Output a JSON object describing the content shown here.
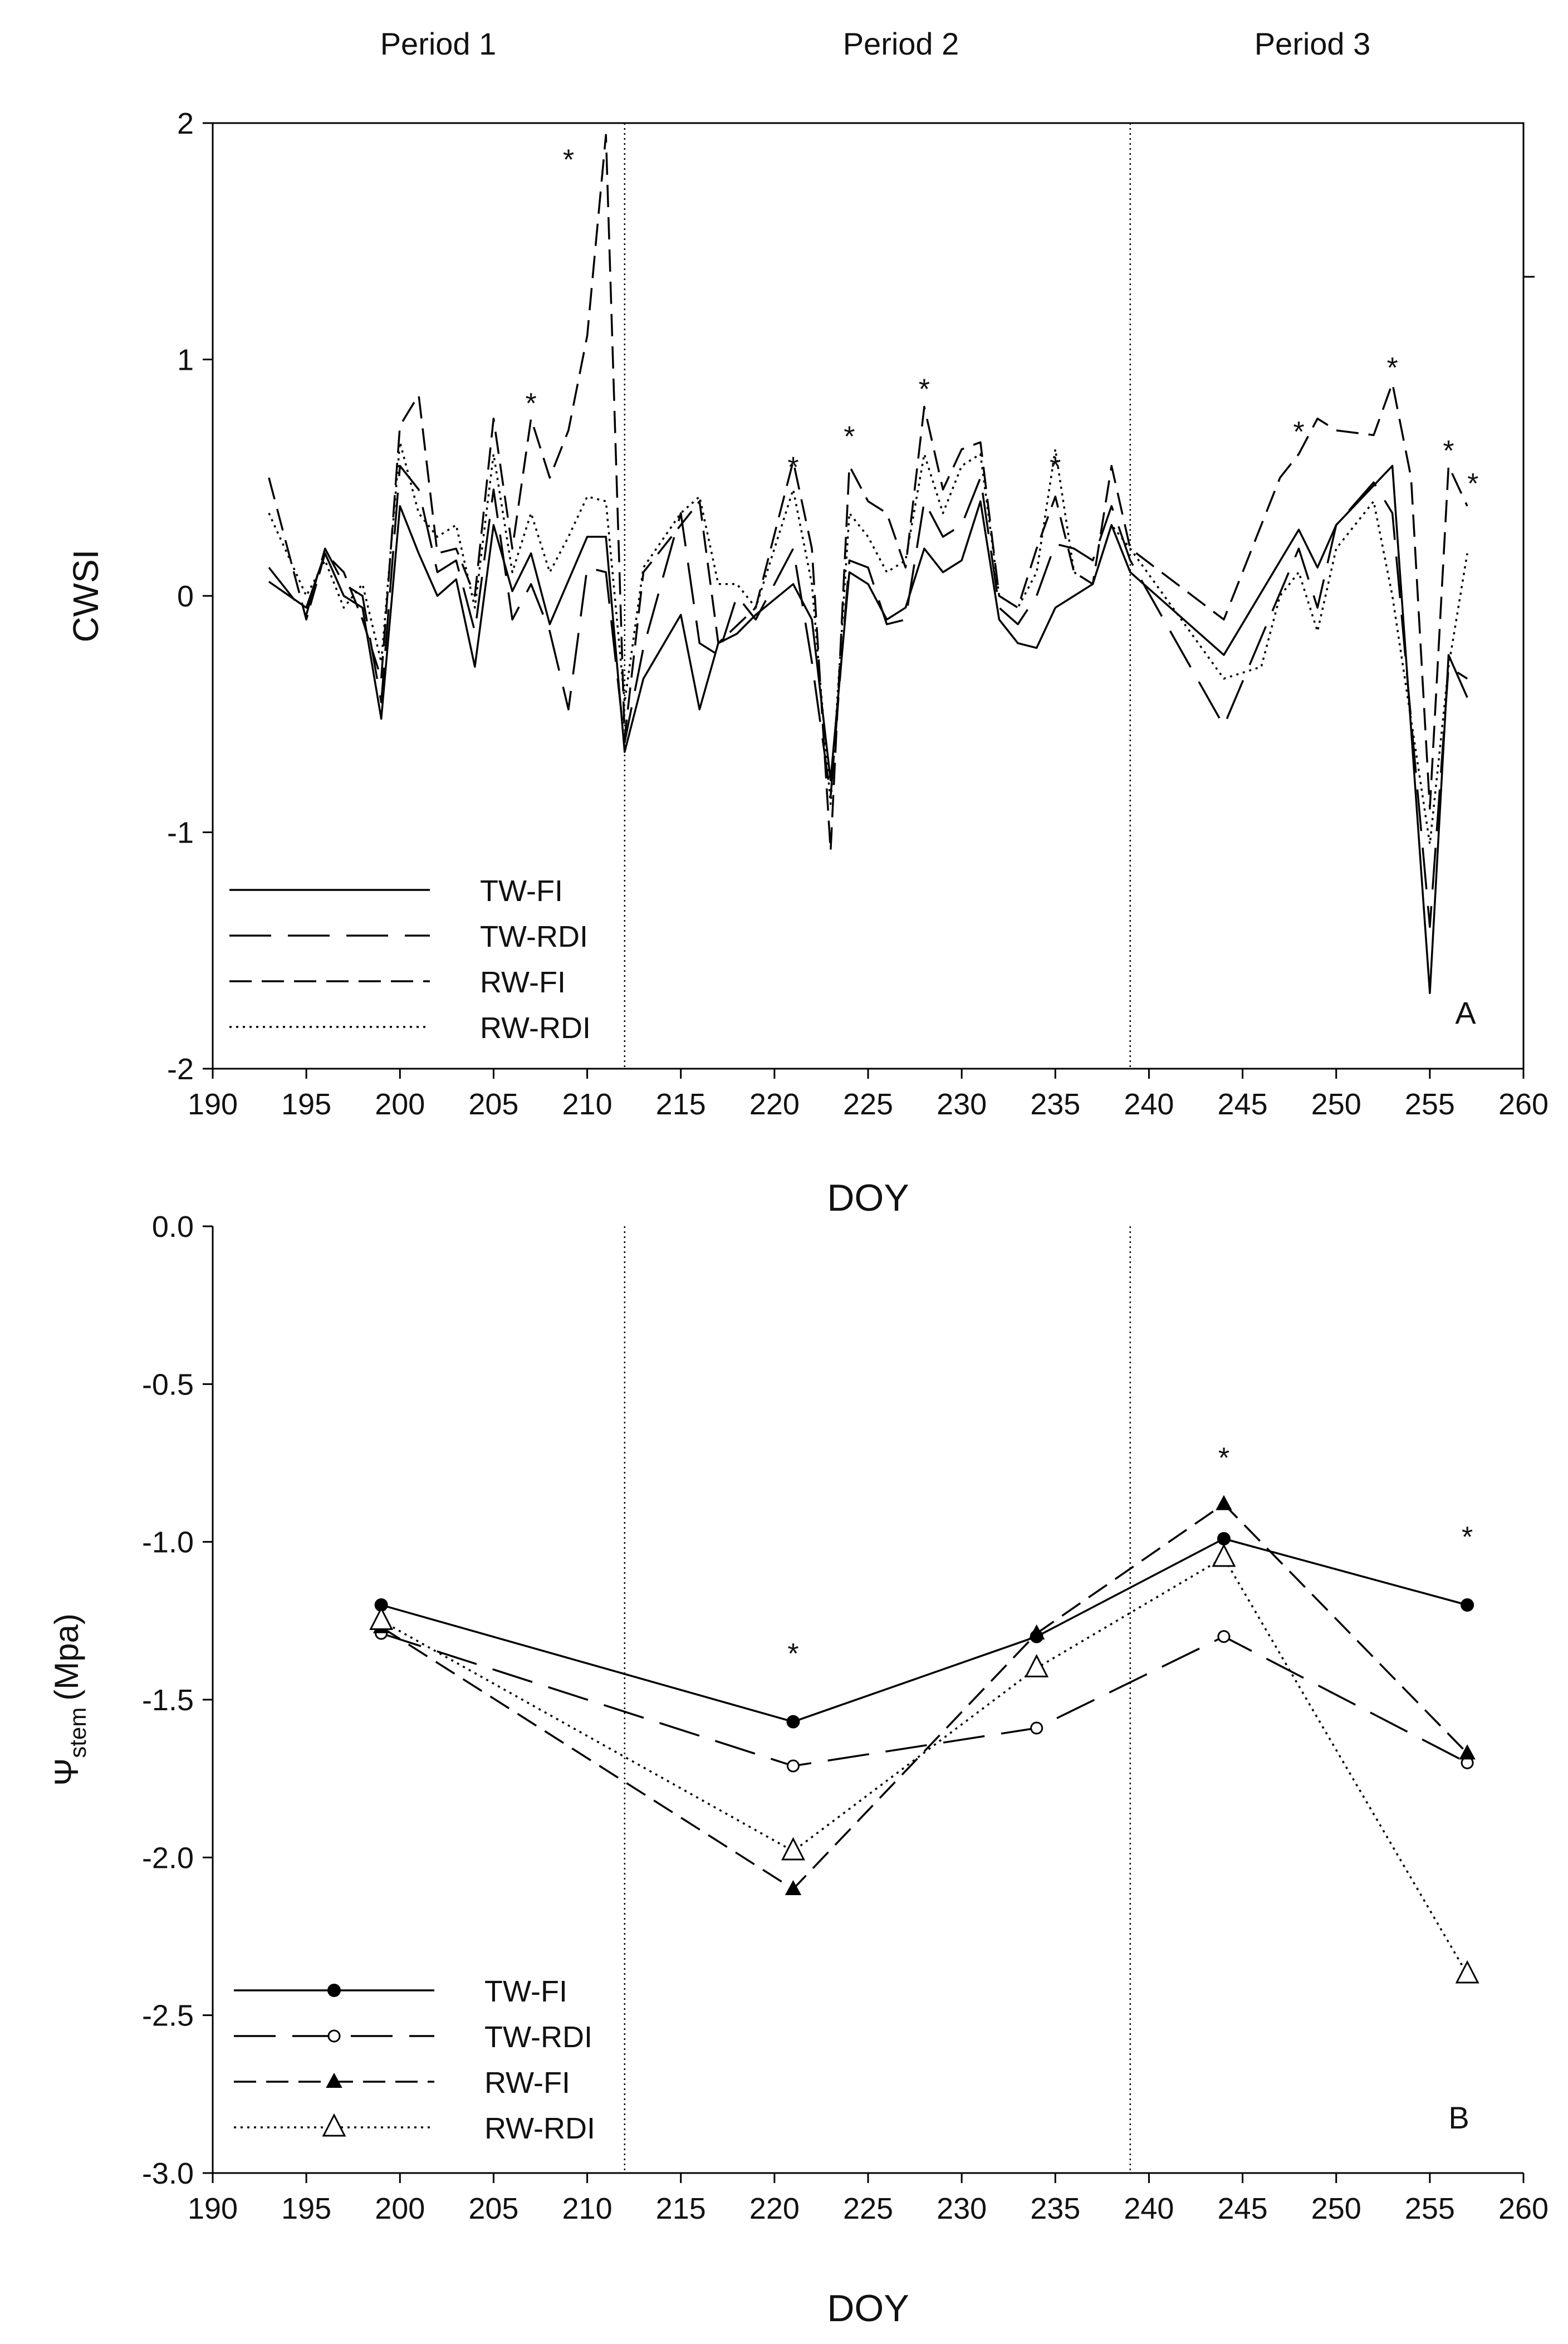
{
  "periods": [
    "Period 1",
    "Period 2",
    "Period 3"
  ],
  "chart_data": [
    {
      "type": "line",
      "panel_label": "A",
      "xlabel": "DOY",
      "ylabel": "CWSI",
      "xlim": [
        190,
        260
      ],
      "ylim": [
        -2,
        2
      ],
      "xticks": [
        190,
        195,
        200,
        205,
        210,
        215,
        220,
        225,
        230,
        235,
        240,
        245,
        250,
        255,
        260
      ],
      "yticks": [
        -2,
        -1,
        0,
        1,
        2
      ],
      "ytick_labels": [
        "-2",
        "-1",
        "0",
        "1",
        "2"
      ],
      "period_boundaries": [
        212,
        239
      ],
      "legend": [
        "TW-FI",
        "TW-RDI",
        "RW-FI",
        "RW-RDI"
      ],
      "series": [
        {
          "name": "TW-FI",
          "x": [
            193,
            195,
            196,
            197,
            198,
            199,
            200,
            201,
            202,
            203,
            204,
            205,
            206,
            207,
            208,
            210,
            211,
            212,
            213,
            215,
            216,
            217,
            218,
            219,
            221,
            222,
            223,
            224,
            225,
            226,
            227,
            228,
            229,
            230,
            231,
            232,
            233,
            234,
            235,
            236,
            237,
            238,
            239,
            244,
            248,
            249,
            250,
            253,
            255,
            256,
            257
          ],
          "y": [
            0.06,
            -0.05,
            0.18,
            0.0,
            -0.05,
            -0.52,
            0.38,
            0.18,
            0.0,
            0.07,
            -0.3,
            0.3,
            0.02,
            0.18,
            -0.12,
            0.25,
            0.25,
            -0.66,
            -0.35,
            -0.08,
            -0.48,
            -0.2,
            -0.16,
            -0.08,
            0.05,
            -0.1,
            -0.78,
            0.1,
            0.05,
            -0.1,
            -0.05,
            0.2,
            0.1,
            0.15,
            0.4,
            -0.1,
            -0.2,
            -0.22,
            -0.05,
            0.0,
            0.05,
            0.3,
            0.1,
            -0.25,
            0.28,
            0.12,
            0.3,
            0.55,
            -1.68,
            -0.25,
            -0.43
          ]
        },
        {
          "name": "TW-RDI",
          "x": [
            193,
            195,
            196,
            197,
            198,
            199,
            200,
            201,
            202,
            203,
            204,
            205,
            206,
            207,
            208,
            209,
            210,
            211,
            212,
            213,
            215,
            216,
            217,
            218,
            219,
            221,
            222,
            223,
            224,
            225,
            226,
            227,
            228,
            229,
            230,
            231,
            232,
            233,
            234,
            235,
            236,
            237,
            238,
            239,
            244,
            248,
            249,
            250,
            252,
            253,
            255,
            256,
            257
          ],
          "y": [
            0.12,
            -0.08,
            0.2,
            0.05,
            0.0,
            -0.45,
            0.55,
            0.45,
            0.1,
            0.15,
            -0.15,
            0.45,
            -0.1,
            0.05,
            -0.15,
            -0.48,
            0.12,
            0.1,
            -0.62,
            -0.22,
            0.35,
            -0.2,
            -0.25,
            0.0,
            -0.1,
            0.2,
            -0.28,
            -0.85,
            0.15,
            0.12,
            -0.12,
            -0.1,
            0.4,
            0.25,
            0.3,
            0.5,
            -0.05,
            -0.12,
            0.0,
            0.22,
            0.2,
            0.15,
            0.38,
            0.15,
            -0.55,
            0.2,
            -0.05,
            0.3,
            0.48,
            0.35,
            -1.4,
            -0.3,
            -0.35
          ]
        },
        {
          "name": "RW-FI",
          "x": [
            193,
            194,
            195,
            196,
            197,
            198,
            199,
            200,
            201,
            202,
            203,
            204,
            205,
            206,
            207,
            208,
            209,
            210,
            211,
            212,
            213,
            214,
            215,
            216,
            217,
            219,
            221,
            222,
            223,
            224,
            225,
            226,
            227,
            228,
            229,
            230,
            231,
            232,
            233,
            234,
            235,
            236,
            237,
            238,
            239,
            244,
            247,
            248,
            249,
            250,
            252,
            253,
            254,
            255,
            256,
            257
          ],
          "y": [
            0.5,
            0.2,
            -0.1,
            0.18,
            0.1,
            -0.1,
            -0.35,
            0.72,
            0.85,
            0.18,
            0.2,
            0.0,
            0.75,
            0.2,
            0.75,
            0.5,
            0.7,
            1.1,
            1.95,
            -0.6,
            0.1,
            0.2,
            0.3,
            0.4,
            -0.2,
            -0.05,
            0.57,
            0.2,
            -1.08,
            0.55,
            0.4,
            0.35,
            0.12,
            0.8,
            0.45,
            0.62,
            0.65,
            0.0,
            -0.05,
            0.2,
            0.42,
            0.1,
            0.05,
            0.55,
            0.2,
            -0.1,
            0.5,
            0.6,
            0.75,
            0.7,
            0.68,
            0.9,
            0.5,
            -0.9,
            0.55,
            0.38
          ]
        },
        {
          "name": "RW-RDI",
          "x": [
            193,
            195,
            196,
            197,
            198,
            199,
            200,
            201,
            202,
            203,
            204,
            205,
            206,
            207,
            208,
            209,
            210,
            211,
            212,
            213,
            215,
            216,
            217,
            218,
            219,
            221,
            222,
            223,
            224,
            225,
            226,
            227,
            228,
            229,
            230,
            231,
            232,
            233,
            234,
            235,
            236,
            237,
            238,
            239,
            244,
            246,
            247,
            248,
            249,
            250,
            252,
            253,
            255,
            256,
            257
          ],
          "y": [
            0.35,
            0.0,
            0.15,
            -0.05,
            0.05,
            -0.28,
            0.65,
            0.35,
            0.25,
            0.3,
            -0.05,
            0.6,
            0.1,
            0.35,
            0.1,
            0.25,
            0.42,
            0.4,
            -0.45,
            0.12,
            0.35,
            0.42,
            0.05,
            0.05,
            -0.05,
            0.45,
            0.05,
            -0.88,
            0.35,
            0.25,
            0.1,
            0.15,
            0.6,
            0.35,
            0.55,
            0.6,
            0.0,
            -0.05,
            0.1,
            0.62,
            0.1,
            0.05,
            0.3,
            0.2,
            -0.35,
            -0.3,
            0.0,
            0.1,
            -0.15,
            0.2,
            0.4,
            0.0,
            -1.05,
            -0.3,
            0.18
          ]
        }
      ],
      "annotations": [
        {
          "text": "*",
          "x": 209.0,
          "y": 1.85
        },
        {
          "text": "*",
          "x": 207.0,
          "y": 0.82
        },
        {
          "text": "*",
          "x": 221.0,
          "y": 0.55
        },
        {
          "text": "*",
          "x": 224.0,
          "y": 0.68
        },
        {
          "text": "*",
          "x": 228.0,
          "y": 0.88
        },
        {
          "text": "*",
          "x": 235.0,
          "y": 0.55
        },
        {
          "text": "*",
          "x": 248.0,
          "y": 0.7
        },
        {
          "text": "*",
          "x": 253.0,
          "y": 0.97
        },
        {
          "text": "*",
          "x": 256.0,
          "y": 0.62
        },
        {
          "text": "*",
          "x": 257.3,
          "y": 0.48
        }
      ]
    },
    {
      "type": "line",
      "panel_label": "B",
      "xlabel": "DOY",
      "ylabel_main": "Ψ",
      "ylabel_sub": "stem",
      "ylabel_unit": "(Mpa)",
      "xlim": [
        190,
        260
      ],
      "ylim": [
        -3.0,
        0.0
      ],
      "xticks": [
        190,
        195,
        200,
        205,
        210,
        215,
        220,
        225,
        230,
        235,
        240,
        245,
        250,
        255,
        260
      ],
      "yticks": [
        -3.0,
        -2.5,
        -2.0,
        -1.5,
        -1.0,
        -0.5,
        0.0
      ],
      "ytick_labels": [
        "-3.0",
        "-2.5",
        "-2.0",
        "-1.5",
        "-1.0",
        "-0.5",
        "0.0"
      ],
      "period_boundaries": [
        212,
        239
      ],
      "legend": [
        "TW-FI",
        "TW-RDI",
        "RW-FI",
        "RW-RDI"
      ],
      "series": [
        {
          "name": "TW-FI",
          "marker": "filled-circle",
          "x": [
            199,
            221,
            234,
            244,
            257
          ],
          "y": [
            -1.2,
            -1.57,
            -1.3,
            -0.99,
            -1.2
          ]
        },
        {
          "name": "TW-RDI",
          "marker": "open-circle",
          "x": [
            199,
            221,
            234,
            244,
            257
          ],
          "y": [
            -1.29,
            -1.71,
            -1.59,
            -1.3,
            -1.7
          ]
        },
        {
          "name": "RW-FI",
          "marker": "filled-triangle",
          "x": [
            199,
            221,
            234,
            244,
            257
          ],
          "y": [
            -1.27,
            -2.1,
            -1.29,
            -0.88,
            -1.67
          ]
        },
        {
          "name": "RW-RDI",
          "marker": "open-triangle",
          "x": [
            199,
            221,
            234,
            244,
            257
          ],
          "y": [
            -1.25,
            -1.98,
            -1.4,
            -1.05,
            -2.37
          ]
        }
      ],
      "annotations": [
        {
          "text": "*",
          "x": 221.0,
          "y": -1.35
        },
        {
          "text": "*",
          "x": 244.0,
          "y": -0.73
        },
        {
          "text": "*",
          "x": 257.0,
          "y": -0.98
        }
      ]
    }
  ]
}
